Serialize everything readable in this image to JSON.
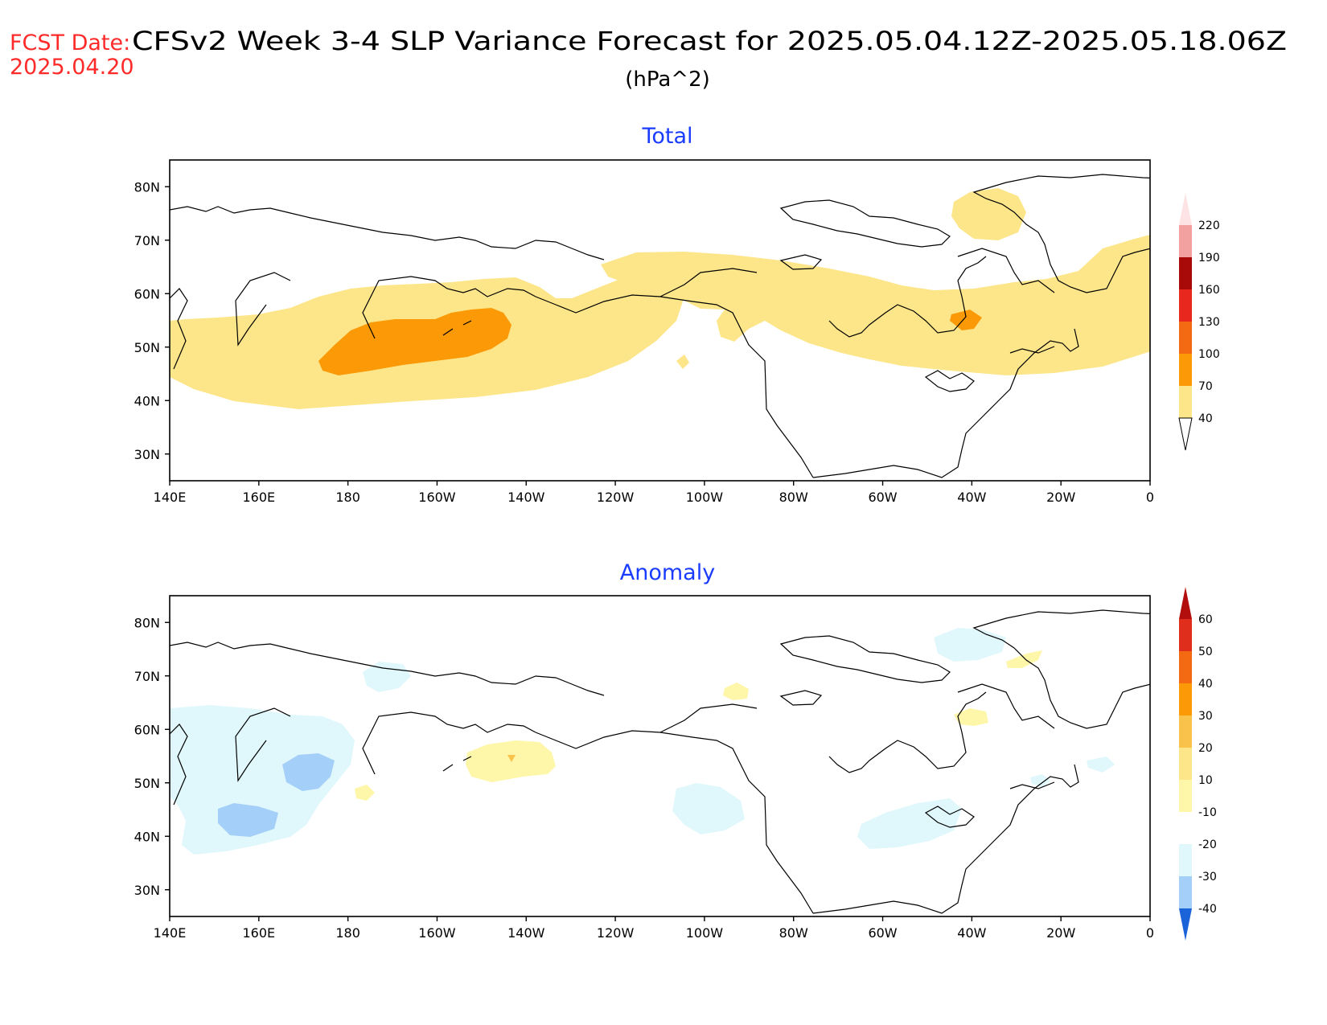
{
  "header": {
    "fcst_label": "FCST Date:",
    "fcst_date": "2025.04.20",
    "title": "CFSv2 Week 3-4 SLP Variance Forecast for 2025.05.04.12Z-2025.05.18.06Z",
    "units": "(hPa^2)"
  },
  "axes": {
    "lat_ticks": [
      "30N",
      "40N",
      "50N",
      "60N",
      "70N",
      "80N"
    ],
    "lon_ticks": [
      "140E",
      "160E",
      "180",
      "160W",
      "140W",
      "120W",
      "100W",
      "80W",
      "60W",
      "40W",
      "20W",
      "0"
    ]
  },
  "panels": [
    {
      "title": "Total",
      "colorbar": {
        "levels": [
          "40",
          "70",
          "100",
          "130",
          "160",
          "190",
          "220"
        ],
        "colors": [
          "#fde68a",
          "#fb9a06",
          "#f36a12",
          "#e8281e",
          "#a80a0a",
          "#f2a0a0",
          "#fde3e3"
        ]
      }
    },
    {
      "title": "Anomaly",
      "colorbar": {
        "levels": [
          "-40",
          "-30",
          "-20",
          "-10",
          "10",
          "20",
          "30",
          "40",
          "50",
          "60"
        ],
        "colors": [
          "#1a63d8",
          "#2f84e8",
          "#5aa2f0",
          "#a3cff8",
          "#e0f8fc",
          "#ffffff",
          "#fef6a8",
          "#fde68a",
          "#f9c24a",
          "#fb9a06",
          "#f36a12",
          "#e02e1c",
          "#b20e0e"
        ]
      }
    }
  ]
}
